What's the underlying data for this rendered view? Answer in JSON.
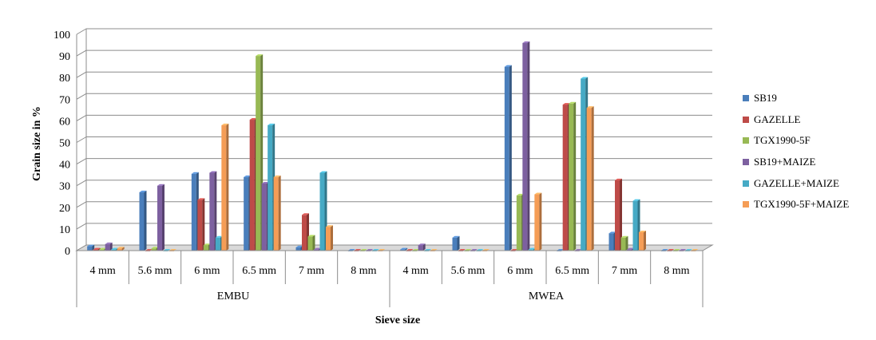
{
  "chart_data": {
    "type": "bar",
    "ylabel": "Grain size in %",
    "xlabel": "Sieve size",
    "ylim": [
      0,
      100
    ],
    "yticks": [
      "0",
      "10",
      "20",
      "30",
      "40",
      "50",
      "60",
      "70",
      "80",
      "90",
      "100"
    ],
    "grid": true,
    "legend_position": "right",
    "groups": [
      "EMBU",
      "MWEA"
    ],
    "sub_categories": [
      "4 mm",
      "5.6 mm",
      "6 mm",
      "6.5 mm",
      "7 mm",
      "8 mm"
    ],
    "categories": [
      "EMBU 4 mm",
      "EMBU 5.6 mm",
      "EMBU 6 mm",
      "EMBU 6.5 mm",
      "EMBU 7 mm",
      "EMBU 8 mm",
      "MWEA 4 mm",
      "MWEA 5.6 mm",
      "MWEA 6 mm",
      "MWEA 6.5 mm",
      "MWEA 7 mm",
      "MWEA 8 mm"
    ],
    "series": [
      {
        "name": "SB19",
        "color": "#4a7ebb",
        "values": [
          2,
          27,
          35.5,
          34,
          1.5,
          0,
          0.5,
          6,
          85,
          0,
          8,
          0
        ]
      },
      {
        "name": "GAZELLE",
        "color": "#be4b48",
        "values": [
          0.5,
          0,
          23.5,
          60.5,
          16.5,
          0,
          0,
          0,
          0,
          67.5,
          32.5,
          0
        ]
      },
      {
        "name": "TGX1990-5F",
        "color": "#98b954",
        "values": [
          0.5,
          1,
          2.5,
          90,
          6.5,
          0,
          0,
          0,
          25.5,
          68,
          6,
          0
        ]
      },
      {
        "name": "SB19+MAIZE",
        "color": "#7d60a0",
        "values": [
          3,
          30,
          36,
          31,
          0.5,
          0,
          2.5,
          0,
          96,
          0,
          0.5,
          0
        ]
      },
      {
        "name": "GAZELLE+MAIZE",
        "color": "#46aac5",
        "values": [
          0.5,
          0,
          6,
          58,
          36,
          0,
          0,
          0,
          0.5,
          79.5,
          23,
          0
        ]
      },
      {
        "name": "TGX1990-5F+MAIZE",
        "color": "#f59d56",
        "values": [
          1,
          0,
          58,
          34,
          11,
          0,
          0,
          0,
          26,
          66,
          8.5,
          0
        ]
      }
    ]
  }
}
